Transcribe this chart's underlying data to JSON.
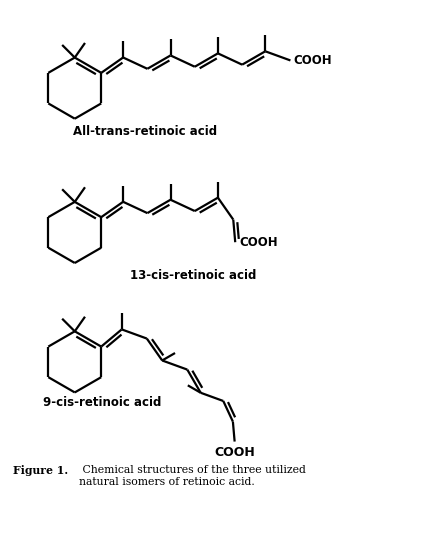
{
  "background_color": "#ffffff",
  "line_color": "#000000",
  "lw": 1.6,
  "label1": "All-trans-retinoic acid",
  "label2": "13-cis-retinoic acid",
  "label3": "9-cis-retinoic acid",
  "fig_caption": "Figure 1.  Chemical structures of the three utilized\nnatural isomers of retinoic acid.",
  "fig_width": 4.38,
  "fig_height": 5.36
}
